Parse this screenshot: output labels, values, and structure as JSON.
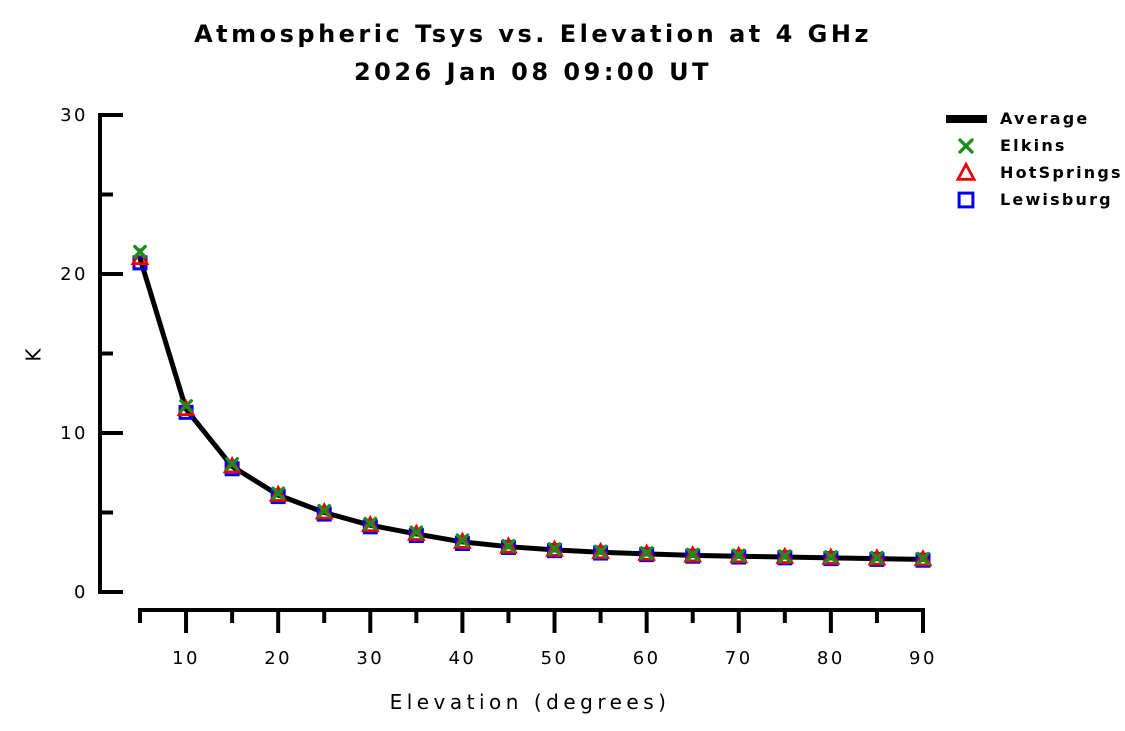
{
  "chart_data": {
    "type": "line+scatter",
    "title": "Atmospheric Tsys vs. Elevation at 4 GHz",
    "subtitle": "2026 Jan 08 09:00 UT",
    "xlabel": "Elevation (degrees)",
    "ylabel": "K",
    "xlim": [
      5,
      90
    ],
    "ylim": [
      0,
      30
    ],
    "grid": false,
    "legend_position": "top-right",
    "xticks_major": [
      10,
      20,
      30,
      40,
      50,
      60,
      70,
      80,
      90
    ],
    "xticks_minor": [
      5,
      15,
      25,
      35,
      45,
      55,
      65,
      75,
      85
    ],
    "yticks_major": [
      0,
      10,
      20,
      30
    ],
    "yticks_minor": [
      5,
      15,
      25
    ],
    "x": [
      5,
      10,
      15,
      20,
      25,
      30,
      35,
      40,
      45,
      50,
      55,
      60,
      65,
      70,
      75,
      80,
      85,
      90
    ],
    "series": [
      {
        "name": "Average",
        "marker": "line",
        "color": "#000000",
        "values": [
          21.0,
          11.5,
          7.9,
          6.1,
          5.0,
          4.2,
          3.65,
          3.15,
          2.85,
          2.65,
          2.5,
          2.4,
          2.3,
          2.25,
          2.2,
          2.15,
          2.1,
          2.05
        ]
      },
      {
        "name": "Elkins",
        "marker": "x",
        "color": "#1c8c1c",
        "values": [
          21.4,
          11.7,
          8.05,
          6.2,
          5.1,
          4.3,
          3.75,
          3.25,
          2.9,
          2.7,
          2.55,
          2.45,
          2.35,
          2.3,
          2.25,
          2.2,
          2.15,
          2.1
        ]
      },
      {
        "name": "HotSprings",
        "marker": "triangle",
        "color": "#ee0000",
        "values": [
          21.0,
          11.5,
          7.9,
          6.1,
          5.0,
          4.2,
          3.65,
          3.15,
          2.85,
          2.65,
          2.5,
          2.4,
          2.3,
          2.25,
          2.2,
          2.15,
          2.1,
          2.05
        ]
      },
      {
        "name": "Lewisburg",
        "marker": "square",
        "color": "#0000ee",
        "values": [
          20.7,
          11.3,
          7.75,
          6.0,
          4.9,
          4.1,
          3.55,
          3.05,
          2.8,
          2.6,
          2.45,
          2.35,
          2.25,
          2.2,
          2.15,
          2.1,
          2.05,
          2.0
        ]
      }
    ]
  }
}
